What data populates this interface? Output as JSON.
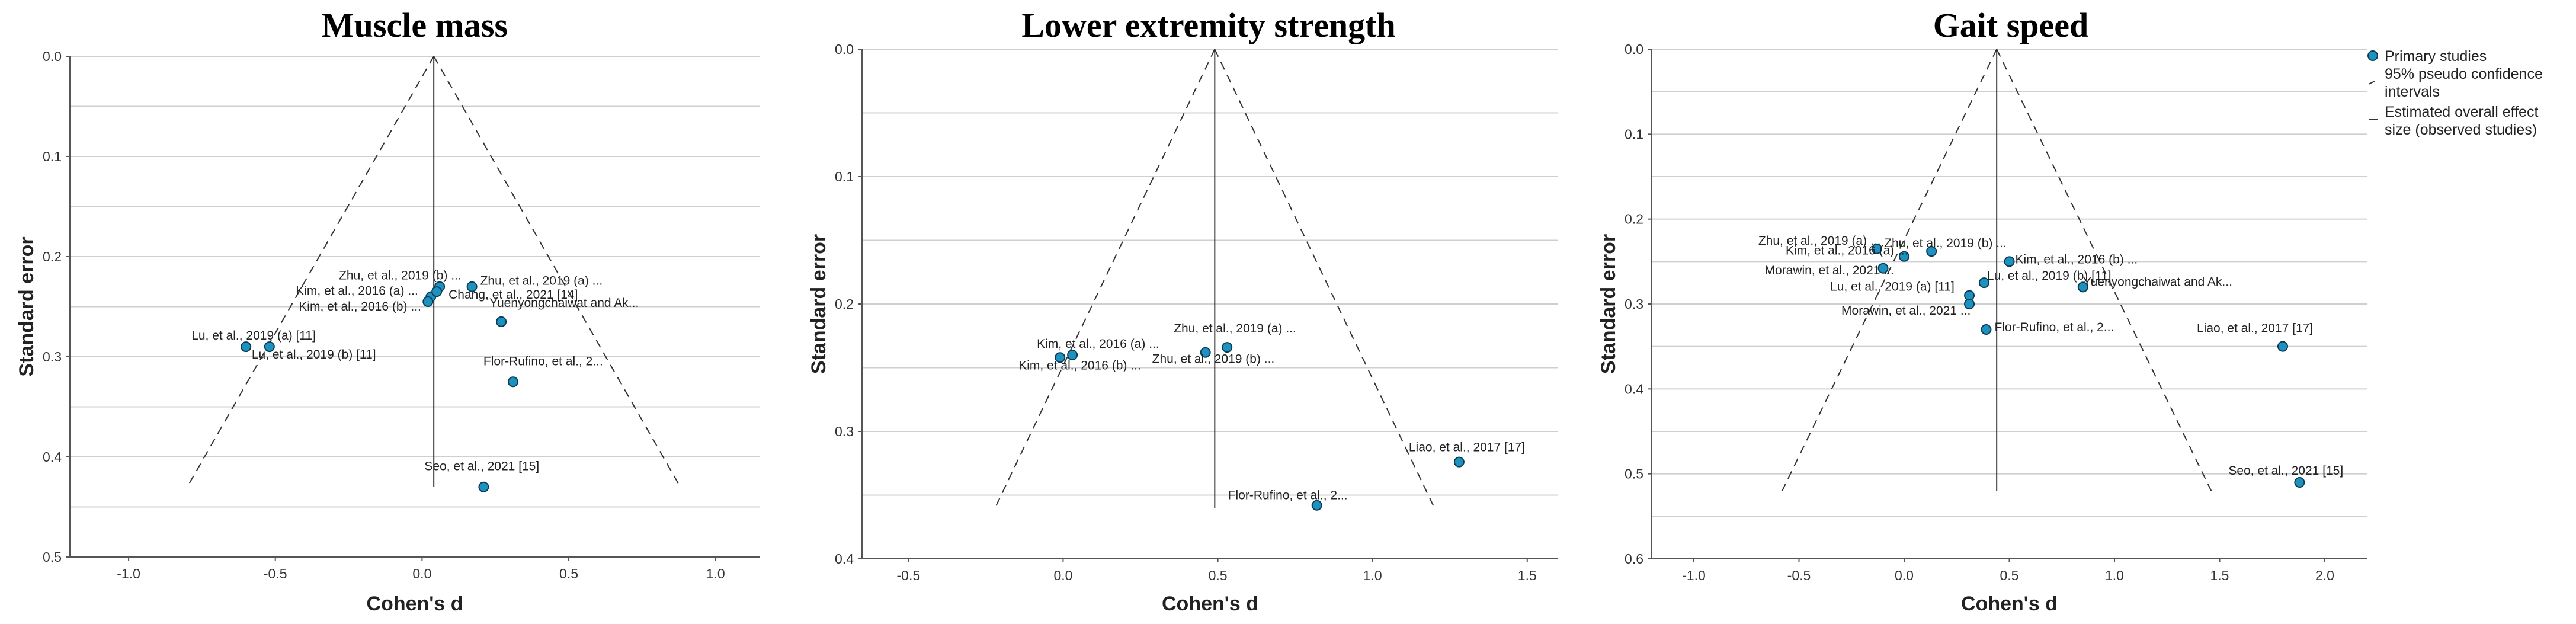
{
  "legend": {
    "primary": "Primary studies",
    "pseudo_ci": [
      "95% pseudo confidence",
      "intervals"
    ],
    "overall": [
      "Estimated overall effect",
      "size (observed studies)"
    ]
  },
  "colors": {
    "point": "#1d92bf",
    "point_stroke": "#0b3b55",
    "grid": "#cfcfcf",
    "axis": "#555555",
    "line": "#333333"
  },
  "chart_data": [
    {
      "type": "scatter",
      "title": "Muscle mass",
      "xlabel": "Cohen's d",
      "ylabel": "Standard error",
      "xlim": [
        -1.2,
        1.15
      ],
      "ylim": [
        0.0,
        0.5
      ],
      "y_inverted": true,
      "xticks": [
        -1.0,
        -0.5,
        0.0,
        0.5,
        1.0
      ],
      "xtick_labels": [
        "-1.0",
        "-0.5",
        "0.0",
        "0.5",
        "1.0"
      ],
      "yticks": [
        0.0,
        0.1,
        0.2,
        0.3,
        0.4,
        0.5
      ],
      "ytick_labels": [
        "0.0",
        "0.1",
        "0.2",
        "0.3",
        "0.4",
        "0.5"
      ],
      "gridlines_y": [
        0.05,
        0.15,
        0.25,
        0.35,
        0.45
      ],
      "funnel": {
        "apex": [
          0.04,
          0.0
        ],
        "left_base": [
          -0.8,
          0.43
        ],
        "right_base": [
          0.88,
          0.43
        ]
      },
      "overall_effect": {
        "x": 0.04,
        "y0": 0.0,
        "y1": 0.43
      },
      "points": [
        {
          "label": "Zhu, et al., 2019 (b) ...",
          "x": 0.06,
          "y": 0.23
        },
        {
          "label": "Zhu, et al., 2019 (a) ...",
          "x": 0.17,
          "y": 0.23
        },
        {
          "label": "Kim, et al., 2016 (a) ...",
          "x": 0.03,
          "y": 0.24
        },
        {
          "label": "Chang, et al., 2021 [14]",
          "x": 0.05,
          "y": 0.235
        },
        {
          "label": "Kim, et al., 2016 (b) ...",
          "x": 0.02,
          "y": 0.245
        },
        {
          "label": "Yuenyongchaiwat and Ak...",
          "x": 0.27,
          "y": 0.265
        },
        {
          "label": "Lu, et al., 2019 (a) [11]",
          "x": -0.6,
          "y": 0.29
        },
        {
          "label": "Lu, et al., 2019 (b) [11]",
          "x": -0.52,
          "y": 0.29
        },
        {
          "label": "Flor-Rufino, et al., 2...",
          "x": 0.31,
          "y": 0.325
        },
        {
          "label": "Seo, et al., 2021 [15]",
          "x": 0.21,
          "y": 0.43
        }
      ]
    },
    {
      "type": "scatter",
      "title": "Lower extremity strength",
      "xlabel": "Cohen's d",
      "ylabel": "Standard error",
      "xlim": [
        -0.65,
        1.6
      ],
      "ylim": [
        0.0,
        0.4
      ],
      "y_inverted": true,
      "xticks": [
        -0.5,
        0.0,
        0.5,
        1.0,
        1.5
      ],
      "xtick_labels": [
        "-0.5",
        "0.0",
        "0.5",
        "1.0",
        "1.5"
      ],
      "yticks": [
        0.0,
        0.1,
        0.2,
        0.3,
        0.4
      ],
      "ytick_labels": [
        "0.0",
        "0.1",
        "0.2",
        "0.3",
        "0.4"
      ],
      "gridlines_y": [
        0.05,
        0.15,
        0.25,
        0.35
      ],
      "funnel": {
        "apex": [
          0.49,
          0.0
        ],
        "left_base": [
          -0.22,
          0.36
        ],
        "right_base": [
          1.2,
          0.36
        ]
      },
      "overall_effect": {
        "x": 0.49,
        "y0": 0.0,
        "y1": 0.36
      },
      "points": [
        {
          "label": "Kim, et al., 2016 (a) ...",
          "x": 0.03,
          "y": 0.24
        },
        {
          "label": "Kim, et al., 2016 (b) ...",
          "x": -0.01,
          "y": 0.242
        },
        {
          "label": "Zhu, et al., 2019 (a) ...",
          "x": 0.53,
          "y": 0.234
        },
        {
          "label": "Zhu, et al., 2019 (b) ...",
          "x": 0.46,
          "y": 0.238
        },
        {
          "label": "Liao, et al., 2017 [17]",
          "x": 1.28,
          "y": 0.324
        },
        {
          "label": "Flor-Rufino, et al., 2...",
          "x": 0.82,
          "y": 0.358
        }
      ]
    },
    {
      "type": "scatter",
      "title": "Gait speed",
      "xlabel": "Cohen's d",
      "ylabel": "Standard error",
      "xlim": [
        -1.2,
        2.2
      ],
      "ylim": [
        0.0,
        0.6
      ],
      "y_inverted": true,
      "xticks": [
        -1.0,
        -0.5,
        0.0,
        0.5,
        1.0,
        1.5,
        2.0
      ],
      "xtick_labels": [
        "-1.0",
        "-0.5",
        "0.0",
        "0.5",
        "1.0",
        "1.5",
        "2.0"
      ],
      "yticks": [
        0.0,
        0.1,
        0.2,
        0.3,
        0.4,
        0.5,
        0.6
      ],
      "ytick_labels": [
        "0.0",
        "0.1",
        "0.2",
        "0.3",
        "0.4",
        "0.5",
        "0.6"
      ],
      "gridlines_y": [
        0.05,
        0.15,
        0.25,
        0.35,
        0.45,
        0.55
      ],
      "funnel": {
        "apex": [
          0.44,
          0.0
        ],
        "left_base": [
          -0.58,
          0.52
        ],
        "right_base": [
          1.46,
          0.52
        ]
      },
      "overall_effect": {
        "x": 0.44,
        "y0": 0.0,
        "y1": 0.52
      },
      "points": [
        {
          "label": "Zhu, et al., 2019 (a) ...",
          "x": -0.13,
          "y": 0.235
        },
        {
          "label": "Zhu, et al., 2019 (b) ...",
          "x": 0.13,
          "y": 0.238
        },
        {
          "label": "Kim, et al., 2016 (a) ...",
          "x": 0.0,
          "y": 0.244
        },
        {
          "label": "Kim, et al., 2016 (b) ...",
          "x": 0.5,
          "y": 0.25
        },
        {
          "label": "Morawin, et al., 2021 ...",
          "x": -0.1,
          "y": 0.258
        },
        {
          "label": "Lu, et al., 2019 (b) [11]",
          "x": 0.38,
          "y": 0.275
        },
        {
          "label": "Yuenyongchaiwat and Ak...",
          "x": 0.85,
          "y": 0.28
        },
        {
          "label": "Lu, et al., 2019 (a) [11]",
          "x": 0.31,
          "y": 0.29
        },
        {
          "label": "Morawin, et al., 2021 ...",
          "x": 0.31,
          "y": 0.3
        },
        {
          "label": "Flor-Rufino, et al., 2...",
          "x": 0.39,
          "y": 0.33
        },
        {
          "label": "Liao, et al., 2017 [17]",
          "x": 1.8,
          "y": 0.35
        },
        {
          "label": "Seo, et al., 2021 [15]",
          "x": 1.88,
          "y": 0.51
        }
      ]
    }
  ]
}
